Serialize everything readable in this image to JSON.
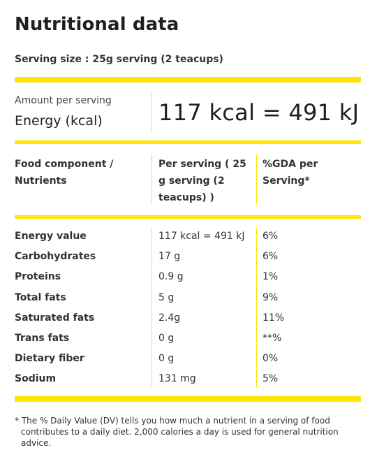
{
  "title": "Nutritional data",
  "serving_size": "Serving size : 25g serving (2 teacups)",
  "amount_per_serving": "Amount per serving",
  "energy_label": "Energy (kcal)",
  "energy_value": "117 kcal = 491 kJ",
  "accent_color": "#ffe600",
  "table": {
    "headers": [
      "Food component / Nutrients",
      "Per serving ( 25 g serving (2 teacups) )",
      "%GDA per Serving*"
    ],
    "rows": [
      {
        "name": "Energy value",
        "per_serving": "117 kcal = 491 kJ",
        "gda": "6%"
      },
      {
        "name": "Carbohydrates",
        "per_serving": "17 g",
        "gda": "6%"
      },
      {
        "name": "Proteins",
        "per_serving": "0.9 g",
        "gda": "1%"
      },
      {
        "name": "Total fats",
        "per_serving": "5 g",
        "gda": "9%"
      },
      {
        "name": "Saturated fats",
        "per_serving": "2.4g",
        "gda": "11%"
      },
      {
        "name": "Trans fats",
        "per_serving": "0 g",
        "gda": "**%"
      },
      {
        "name": "Dietary fiber",
        "per_serving": "0 g",
        "gda": "0%"
      },
      {
        "name": "Sodium",
        "per_serving": "131 mg",
        "gda": "5%"
      }
    ]
  },
  "footnote": "* The % Daily Value (DV) tells you how much a nutrient in a serving of food contributes to a daily diet. 2,000 calories a day is used for general nutrition advice."
}
